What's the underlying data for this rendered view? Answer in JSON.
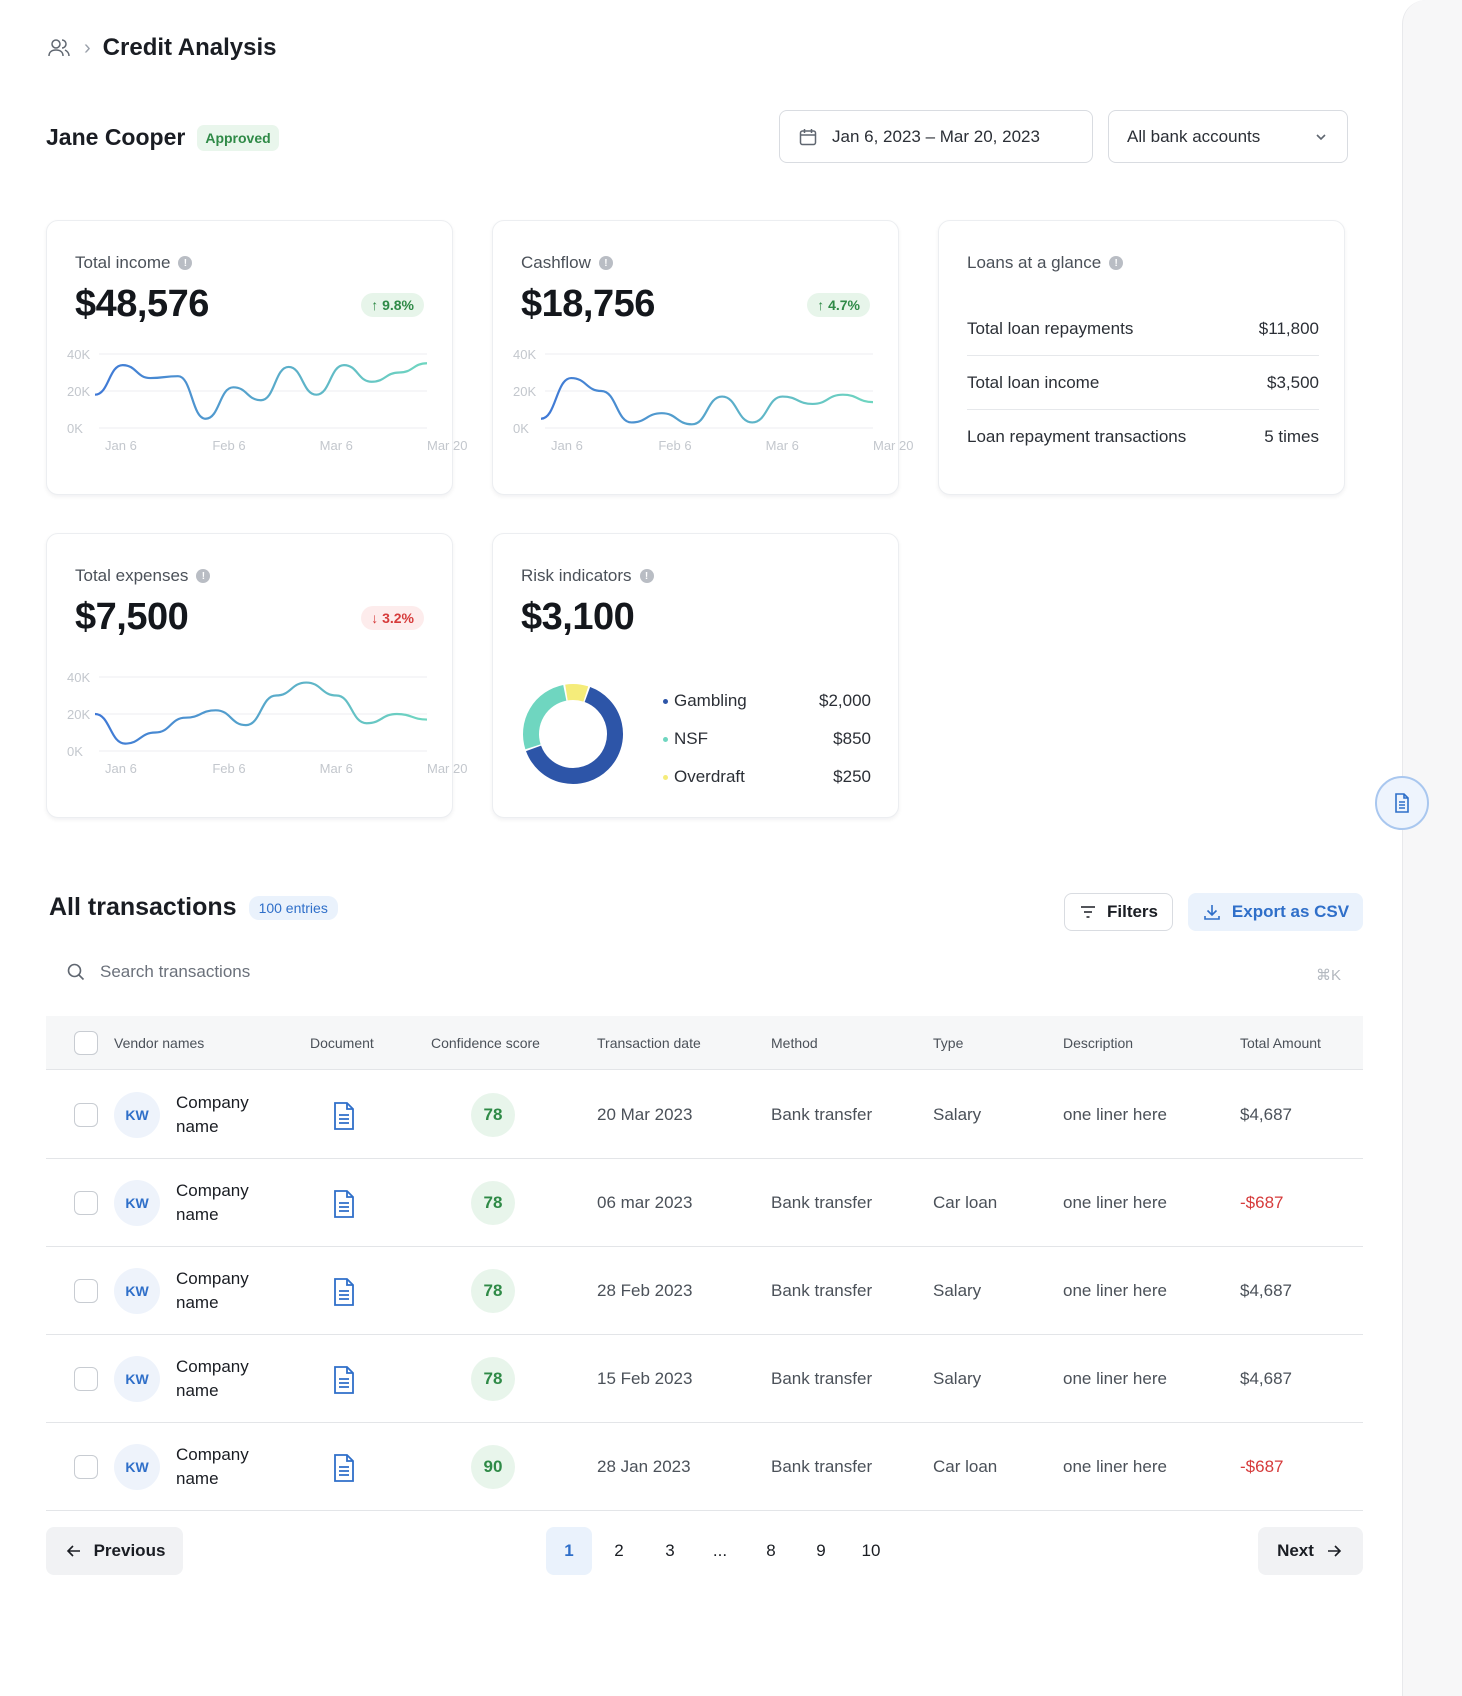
{
  "breadcrumb": {
    "title": "Credit Analysis"
  },
  "user": {
    "name": "Jane Cooper",
    "status": "Approved"
  },
  "filters": {
    "date_range": "Jan 6, 2023 – Mar 20, 2023",
    "account": "All bank accounts"
  },
  "colors": {
    "accent": "#2f6fc9",
    "positive": "#2f8a47",
    "negative": "#d63b3b"
  },
  "cards": {
    "income": {
      "label": "Total income",
      "value": "$48,576",
      "trend": "↑ 9.8%",
      "trend_dir": "up"
    },
    "cashflow": {
      "label": "Cashflow",
      "value": "$18,756",
      "trend": "↑ 4.7%",
      "trend_dir": "up"
    },
    "expenses": {
      "label": "Total expenses",
      "value": "$7,500",
      "trend": "↓ 3.2%",
      "trend_dir": "down"
    },
    "loans": {
      "label": "Loans at a glance",
      "rows": [
        {
          "label": "Total loan repayments",
          "value": "$11,800"
        },
        {
          "label": "Total loan income",
          "value": "$3,500"
        },
        {
          "label": "Loan repayment transactions",
          "value": "5 times"
        }
      ]
    },
    "risk": {
      "label": "Risk indicators",
      "value": "$3,100",
      "items": [
        {
          "label": "Gambling",
          "value": "$2,000",
          "color": "#2d55a8"
        },
        {
          "label": "NSF",
          "value": "$850",
          "color": "#6fd6c0"
        },
        {
          "label": "Overdraft",
          "value": "$250",
          "color": "#f5ec7a"
        }
      ]
    }
  },
  "chart_data": [
    {
      "type": "line",
      "title": "Total income",
      "y_tick_labels": [
        "40K",
        "20K",
        "0K"
      ],
      "x_tick_labels": [
        "Jan 6",
        "Feb 6",
        "Mar 6",
        "Mar 20"
      ],
      "ylim": [
        0,
        40000
      ],
      "series": [
        {
          "values": [
            18000,
            34000,
            27000,
            28000,
            5000,
            22000,
            15000,
            33000,
            18000,
            34000,
            25000,
            30000,
            35000
          ]
        }
      ]
    },
    {
      "type": "line",
      "title": "Cashflow",
      "y_tick_labels": [
        "40K",
        "20K",
        "0K"
      ],
      "x_tick_labels": [
        "Jan 6",
        "Feb 6",
        "Mar 6",
        "Mar 20"
      ],
      "ylim": [
        0,
        40000
      ],
      "series": [
        {
          "values": [
            5000,
            27000,
            20000,
            3000,
            8000,
            2000,
            17000,
            3000,
            17000,
            13000,
            18000,
            14000
          ]
        }
      ]
    },
    {
      "type": "line",
      "title": "Total expenses",
      "y_tick_labels": [
        "40K",
        "20K",
        "0K"
      ],
      "x_tick_labels": [
        "Jan 6",
        "Feb 6",
        "Mar 6",
        "Mar 20"
      ],
      "ylim": [
        0,
        40000
      ],
      "series": [
        {
          "values": [
            20000,
            4000,
            10000,
            18000,
            22000,
            14000,
            30000,
            37000,
            30000,
            15000,
            20000,
            17000
          ]
        }
      ]
    },
    {
      "type": "pie",
      "title": "Risk indicators",
      "categories": [
        "Gambling",
        "NSF",
        "Overdraft"
      ],
      "values": [
        2000,
        850,
        250
      ]
    }
  ],
  "transactions": {
    "title": "All transactions",
    "entries": "100 entries",
    "filters_label": "Filters",
    "export_label": "Export as CSV",
    "search_placeholder": "Search transactions",
    "shortcut": "⌘K",
    "columns": [
      "Vendor names",
      "Document",
      "Confidence score",
      "Transaction date",
      "Method",
      "Type",
      "Description",
      "Total Amount"
    ],
    "rows": [
      {
        "initials": "KW",
        "vendor": "Company name",
        "score": "78",
        "date": "20 Mar 2023",
        "method": "Bank transfer",
        "type": "Salary",
        "description": "one liner here",
        "amount": "$4,687",
        "negative": false
      },
      {
        "initials": "KW",
        "vendor": "Company name",
        "score": "78",
        "date": "06 mar 2023",
        "method": "Bank transfer",
        "type": "Car loan",
        "description": "one liner here",
        "amount": "-$687",
        "negative": true
      },
      {
        "initials": "KW",
        "vendor": "Company name",
        "score": "78",
        "date": "28 Feb 2023",
        "method": "Bank transfer",
        "type": "Salary",
        "description": "one liner here",
        "amount": "$4,687",
        "negative": false
      },
      {
        "initials": "KW",
        "vendor": "Company name",
        "score": "78",
        "date": "15 Feb 2023",
        "method": "Bank transfer",
        "type": "Salary",
        "description": "one liner here",
        "amount": "$4,687",
        "negative": false
      },
      {
        "initials": "KW",
        "vendor": "Company name",
        "score": "90",
        "date": "28 Jan 2023",
        "method": "Bank transfer",
        "type": "Car loan",
        "description": "one liner here",
        "amount": "-$687",
        "negative": true
      }
    ]
  },
  "pagination": {
    "previous": "Previous",
    "next": "Next",
    "pages": [
      "1",
      "2",
      "3",
      "...",
      "8",
      "9",
      "10"
    ],
    "current": "1"
  },
  "icons": {
    "breadcrumb": "users-icon",
    "calendar": "calendar-icon",
    "dropdown": "chevron-down-icon",
    "document": "document-icon",
    "filter": "filter-icon",
    "export": "download-icon",
    "search": "search-icon"
  }
}
